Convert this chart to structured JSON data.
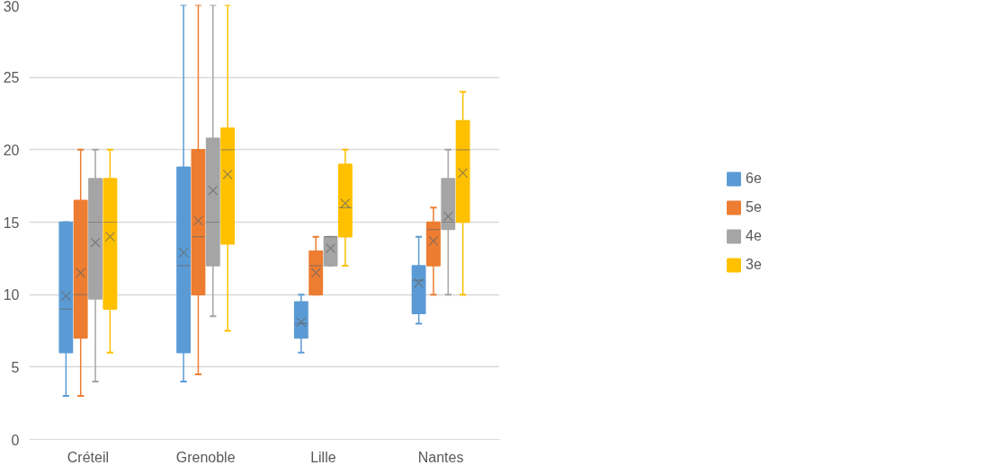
{
  "chart_data": {
    "type": "box",
    "categories": [
      "Créteil",
      "Grenoble",
      "Lille",
      "Nantes"
    ],
    "ylim": [
      0,
      30
    ],
    "yticks": [
      0,
      5,
      10,
      15,
      20,
      25,
      30
    ],
    "grid": "y",
    "legend": "right",
    "series": [
      {
        "name": "6e",
        "color": "#5b9bd5",
        "boxes": [
          {
            "low": 3,
            "q1": 6,
            "median": 9,
            "q3": 15,
            "high": 15,
            "mean": 9.9
          },
          {
            "low": 4,
            "q1": 6,
            "median": 12,
            "q3": 18.8,
            "high": 30,
            "mean": 12.9
          },
          {
            "low": 6,
            "q1": 7,
            "median": 8,
            "q3": 9.5,
            "high": 10,
            "mean": 8.1
          },
          {
            "low": 8,
            "q1": 8.7,
            "median": 11,
            "q3": 12,
            "high": 14,
            "mean": 10.8
          }
        ]
      },
      {
        "name": "5e",
        "color": "#ed7d31",
        "boxes": [
          {
            "low": 3,
            "q1": 7,
            "median": 10,
            "q3": 16.5,
            "high": 20,
            "mean": 11.5
          },
          {
            "low": 4.5,
            "q1": 10,
            "median": 14,
            "q3": 20,
            "high": 30,
            "mean": 15.1
          },
          {
            "low": 10,
            "q1": 10,
            "median": 12,
            "q3": 13,
            "high": 14,
            "mean": 11.5
          },
          {
            "low": 10,
            "q1": 12,
            "median": 14.5,
            "q3": 15,
            "high": 16,
            "mean": 13.7
          }
        ]
      },
      {
        "name": "4e",
        "color": "#a5a5a5",
        "boxes": [
          {
            "low": 4,
            "q1": 9.7,
            "median": 15,
            "q3": 18,
            "high": 20,
            "mean": 13.6
          },
          {
            "low": 8.5,
            "q1": 12,
            "median": 15,
            "q3": 20.8,
            "high": 30,
            "mean": 17.2
          },
          {
            "low": 12,
            "q1": 12,
            "median": 14,
            "q3": 14,
            "high": 14,
            "mean": 13.2
          },
          {
            "low": 10,
            "q1": 14.5,
            "median": 15,
            "q3": 18,
            "high": 20,
            "mean": 15.4
          }
        ]
      },
      {
        "name": "3e",
        "color": "#ffc000",
        "boxes": [
          {
            "low": 6,
            "q1": 9,
            "median": 15,
            "q3": 18,
            "high": 20,
            "mean": 14
          },
          {
            "low": 7.5,
            "q1": 13.5,
            "median": 20,
            "q3": 21.5,
            "high": 30,
            "mean": 18.3
          },
          {
            "low": 12,
            "q1": 14,
            "median": 16,
            "q3": 19,
            "high": 20,
            "mean": 16.3
          },
          {
            "low": 10,
            "q1": 15,
            "median": 20,
            "q3": 22,
            "high": 24,
            "mean": 18.4
          }
        ]
      }
    ]
  }
}
